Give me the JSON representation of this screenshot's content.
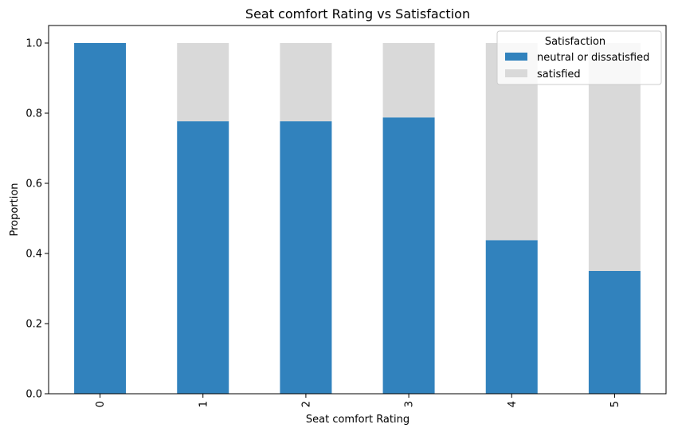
{
  "chart_data": {
    "type": "bar",
    "stacked": true,
    "title": "Seat comfort Rating vs Satisfaction",
    "xlabel": "Seat comfort Rating",
    "ylabel": "Proportion",
    "categories": [
      "0",
      "1",
      "2",
      "3",
      "4",
      "5"
    ],
    "series": [
      {
        "name": "neutral or dissatisfied",
        "color": "#3182bd",
        "values": [
          1.0,
          0.777,
          0.777,
          0.788,
          0.438,
          0.35
        ]
      },
      {
        "name": "satisfied",
        "color": "#d9d9d9",
        "values": [
          0.0,
          0.223,
          0.223,
          0.212,
          0.562,
          0.65
        ]
      }
    ],
    "ylim": [
      0,
      1.05
    ],
    "yticks": [
      "0.0",
      "0.2",
      "0.4",
      "0.6",
      "0.8",
      "1.0"
    ],
    "legend": {
      "title": "Satisfaction",
      "placement": "top-right"
    },
    "grid": false
  }
}
